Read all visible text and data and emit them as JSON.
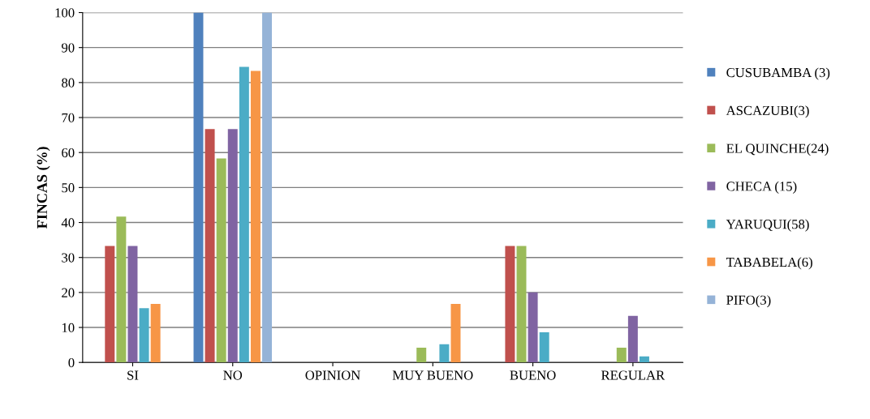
{
  "chart_data": {
    "type": "bar",
    "ylabel": "FINCAS (%)",
    "categories": [
      "SI",
      "NO",
      "OPINION",
      "MUY BUENO",
      "BUENO",
      "REGULAR"
    ],
    "series": [
      {
        "name": "CUSUBAMBA (3)",
        "color": "#4f81bd",
        "values": [
          0,
          100,
          null,
          0,
          0,
          0
        ]
      },
      {
        "name": "ASCAZUBI(3)",
        "color": "#c0504d",
        "values": [
          33.3,
          66.7,
          null,
          0,
          33.3,
          0
        ]
      },
      {
        "name": "EL QUINCHE(24)",
        "color": "#9bbb59",
        "values": [
          41.7,
          58.3,
          null,
          4.2,
          33.3,
          4.2
        ]
      },
      {
        "name": "CHECA (15)",
        "color": "#8064a2",
        "values": [
          33.3,
          66.7,
          null,
          0,
          20,
          13.3
        ]
      },
      {
        "name": "YARUQUI(58)",
        "color": "#4bacc6",
        "values": [
          15.5,
          84.5,
          null,
          5.2,
          8.6,
          1.7
        ]
      },
      {
        "name": "TABABELA(6)",
        "color": "#f79646",
        "values": [
          16.7,
          83.3,
          null,
          16.7,
          0,
          0
        ]
      },
      {
        "name": "PIFO(3)",
        "color": "#95b3d7",
        "values": [
          0,
          100,
          null,
          0,
          0,
          0
        ]
      }
    ],
    "ylim": [
      0,
      100
    ],
    "yticks": [
      0,
      10,
      20,
      30,
      40,
      50,
      60,
      70,
      80,
      90,
      100
    ],
    "grid": "y",
    "legend": "right"
  }
}
